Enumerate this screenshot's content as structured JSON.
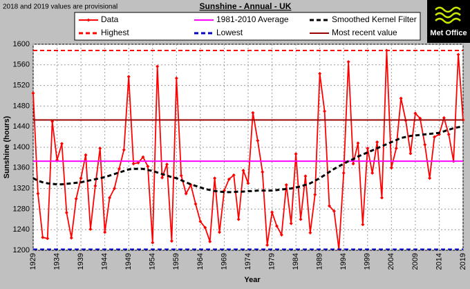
{
  "note": "2018 and 2019 values are provisional",
  "logo": "Met Office",
  "chart_data": {
    "type": "line",
    "title": "Sunshine - Annual - UK",
    "x_label": "Year",
    "y_label": "Sunshine (hours)",
    "x": [
      1929,
      1930,
      1931,
      1932,
      1933,
      1934,
      1935,
      1936,
      1937,
      1938,
      1939,
      1940,
      1941,
      1942,
      1943,
      1944,
      1945,
      1946,
      1947,
      1948,
      1949,
      1950,
      1951,
      1952,
      1953,
      1954,
      1955,
      1956,
      1957,
      1958,
      1959,
      1960,
      1961,
      1962,
      1963,
      1964,
      1965,
      1966,
      1967,
      1968,
      1969,
      1970,
      1971,
      1972,
      1973,
      1974,
      1975,
      1976,
      1977,
      1978,
      1979,
      1980,
      1981,
      1982,
      1983,
      1984,
      1985,
      1986,
      1987,
      1988,
      1989,
      1990,
      1991,
      1992,
      1993,
      1994,
      1995,
      1996,
      1997,
      1998,
      1999,
      2000,
      2001,
      2002,
      2003,
      2004,
      2005,
      2006,
      2007,
      2008,
      2009,
      2010,
      2011,
      2012,
      2013,
      2014,
      2015,
      2016,
      2017,
      2018,
      2019
    ],
    "series": [
      {
        "name": "Data",
        "color": "#ff0000",
        "style": "solid",
        "markers": true,
        "values": [
          1505,
          1310,
          1225,
          1223,
          1450,
          1375,
          1407,
          1273,
          1224,
          1300,
          1340,
          1385,
          1241,
          1325,
          1398,
          1235,
          1302,
          1320,
          1358,
          1395,
          1537,
          1368,
          1370,
          1381,
          1363,
          1215,
          1557,
          1341,
          1367,
          1218,
          1534,
          1345,
          1310,
          1327,
          1290,
          1256,
          1244,
          1217,
          1340,
          1235,
          1316,
          1338,
          1346,
          1260,
          1355,
          1330,
          1467,
          1413,
          1352,
          1210,
          1274,
          1247,
          1230,
          1327,
          1252,
          1387,
          1260,
          1344,
          1234,
          1308,
          1543,
          1470,
          1286,
          1276,
          1202,
          1350,
          1566,
          1368,
          1408,
          1250,
          1398,
          1350,
          1410,
          1302,
          1588,
          1360,
          1398,
          1495,
          1452,
          1388,
          1466,
          1456,
          1405,
          1340,
          1420,
          1425,
          1457,
          1425,
          1373,
          1580,
          1453
        ]
      },
      {
        "name": "1981-2010 Average",
        "color": "#ff00ff",
        "style": "solid",
        "value": 1373
      },
      {
        "name": "Smoothed Kernel Filter",
        "color": "#000000",
        "style": "dashed",
        "values": [
          1340,
          1335,
          1332,
          1330,
          1329,
          1328,
          1328,
          1329,
          1330,
          1331,
          1332,
          1334,
          1336,
          1338,
          1340,
          1342,
          1345,
          1348,
          1351,
          1354,
          1357,
          1358,
          1358,
          1358,
          1356,
          1354,
          1351,
          1348,
          1345,
          1342,
          1340,
          1336,
          1332,
          1328,
          1325,
          1322,
          1319,
          1317,
          1315,
          1314,
          1313,
          1313,
          1313,
          1314,
          1314,
          1315,
          1315,
          1316,
          1316,
          1316,
          1316,
          1317,
          1318,
          1319,
          1320,
          1322,
          1324,
          1327,
          1330,
          1335,
          1340,
          1346,
          1352,
          1358,
          1363,
          1368,
          1373,
          1377,
          1382,
          1386,
          1390,
          1394,
          1398,
          1402,
          1406,
          1410,
          1414,
          1418,
          1420,
          1422,
          1423,
          1424,
          1425,
          1426,
          1427,
          1428,
          1431,
          1434,
          1437,
          1439,
          1440
        ]
      },
      {
        "name": "Highest",
        "color": "#ff0000",
        "style": "dashed",
        "value": 1588
      },
      {
        "name": "Lowest",
        "color": "#0000cc",
        "style": "dashed",
        "value": 1202
      },
      {
        "name": "Most recent value",
        "color": "#990000",
        "style": "solid",
        "value": 1453
      }
    ],
    "xlim": [
      1929,
      2019
    ],
    "xticks": [
      1929,
      1934,
      1939,
      1944,
      1949,
      1954,
      1959,
      1964,
      1969,
      1974,
      1979,
      1984,
      1989,
      1994,
      1999,
      2004,
      2009,
      2014,
      2019
    ],
    "ylim": [
      1200,
      1600
    ],
    "yticks": [
      1200,
      1240,
      1280,
      1320,
      1360,
      1400,
      1440,
      1480,
      1520,
      1560,
      1600
    ],
    "grid": true
  }
}
